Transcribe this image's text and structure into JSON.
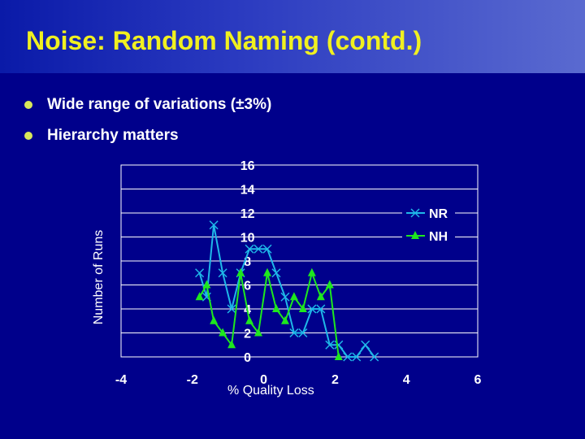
{
  "slide": {
    "title": "Noise: Random Naming (contd.)",
    "bullets": [
      "Wide range of variations (±3%)",
      "Hierarchy matters"
    ]
  },
  "colors": {
    "background": "#00008b",
    "title": "#f0f020",
    "bullet": "#d8e85a",
    "nr_series": "#1fb8e8",
    "nh_series": "#1ee81e",
    "plot_area": "#00008b"
  },
  "chart_data": {
    "type": "line",
    "xlabel": "% Quality Loss",
    "ylabel": "Number of Runs",
    "xlim": [
      -4,
      6
    ],
    "ylim": [
      0,
      16
    ],
    "x_ticks": [
      "-4",
      "-2",
      "0",
      "2",
      "4",
      "6"
    ],
    "y_ticks": [
      "0",
      "2",
      "4",
      "6",
      "8",
      "10",
      "12",
      "14",
      "16"
    ],
    "grid": true,
    "legend_position": "top-right",
    "series": [
      {
        "name": "NR",
        "marker": "x",
        "points": [
          [
            -1.8,
            7
          ],
          [
            -1.6,
            5
          ],
          [
            -1.4,
            11
          ],
          [
            -1.15,
            7
          ],
          [
            -0.9,
            4
          ],
          [
            -0.65,
            7
          ],
          [
            -0.4,
            9
          ],
          [
            -0.15,
            9
          ],
          [
            0.1,
            9
          ],
          [
            0.35,
            7
          ],
          [
            0.6,
            5
          ],
          [
            0.85,
            2
          ],
          [
            1.1,
            2
          ],
          [
            1.35,
            4
          ],
          [
            1.6,
            4
          ],
          [
            1.85,
            1
          ],
          [
            2.1,
            1
          ],
          [
            2.35,
            0
          ],
          [
            2.6,
            0
          ],
          [
            2.85,
            1
          ],
          [
            3.1,
            0
          ]
        ]
      },
      {
        "name": "NH",
        "marker": "triangle",
        "points": [
          [
            -1.8,
            5
          ],
          [
            -1.6,
            6
          ],
          [
            -1.4,
            3
          ],
          [
            -1.15,
            2
          ],
          [
            -0.9,
            1
          ],
          [
            -0.65,
            7
          ],
          [
            -0.4,
            3
          ],
          [
            -0.15,
            2
          ],
          [
            0.1,
            7
          ],
          [
            0.35,
            4
          ],
          [
            0.6,
            3
          ],
          [
            0.85,
            5
          ],
          [
            1.1,
            4
          ],
          [
            1.35,
            7
          ],
          [
            1.6,
            5
          ],
          [
            1.85,
            6
          ],
          [
            2.1,
            0
          ]
        ]
      }
    ]
  }
}
